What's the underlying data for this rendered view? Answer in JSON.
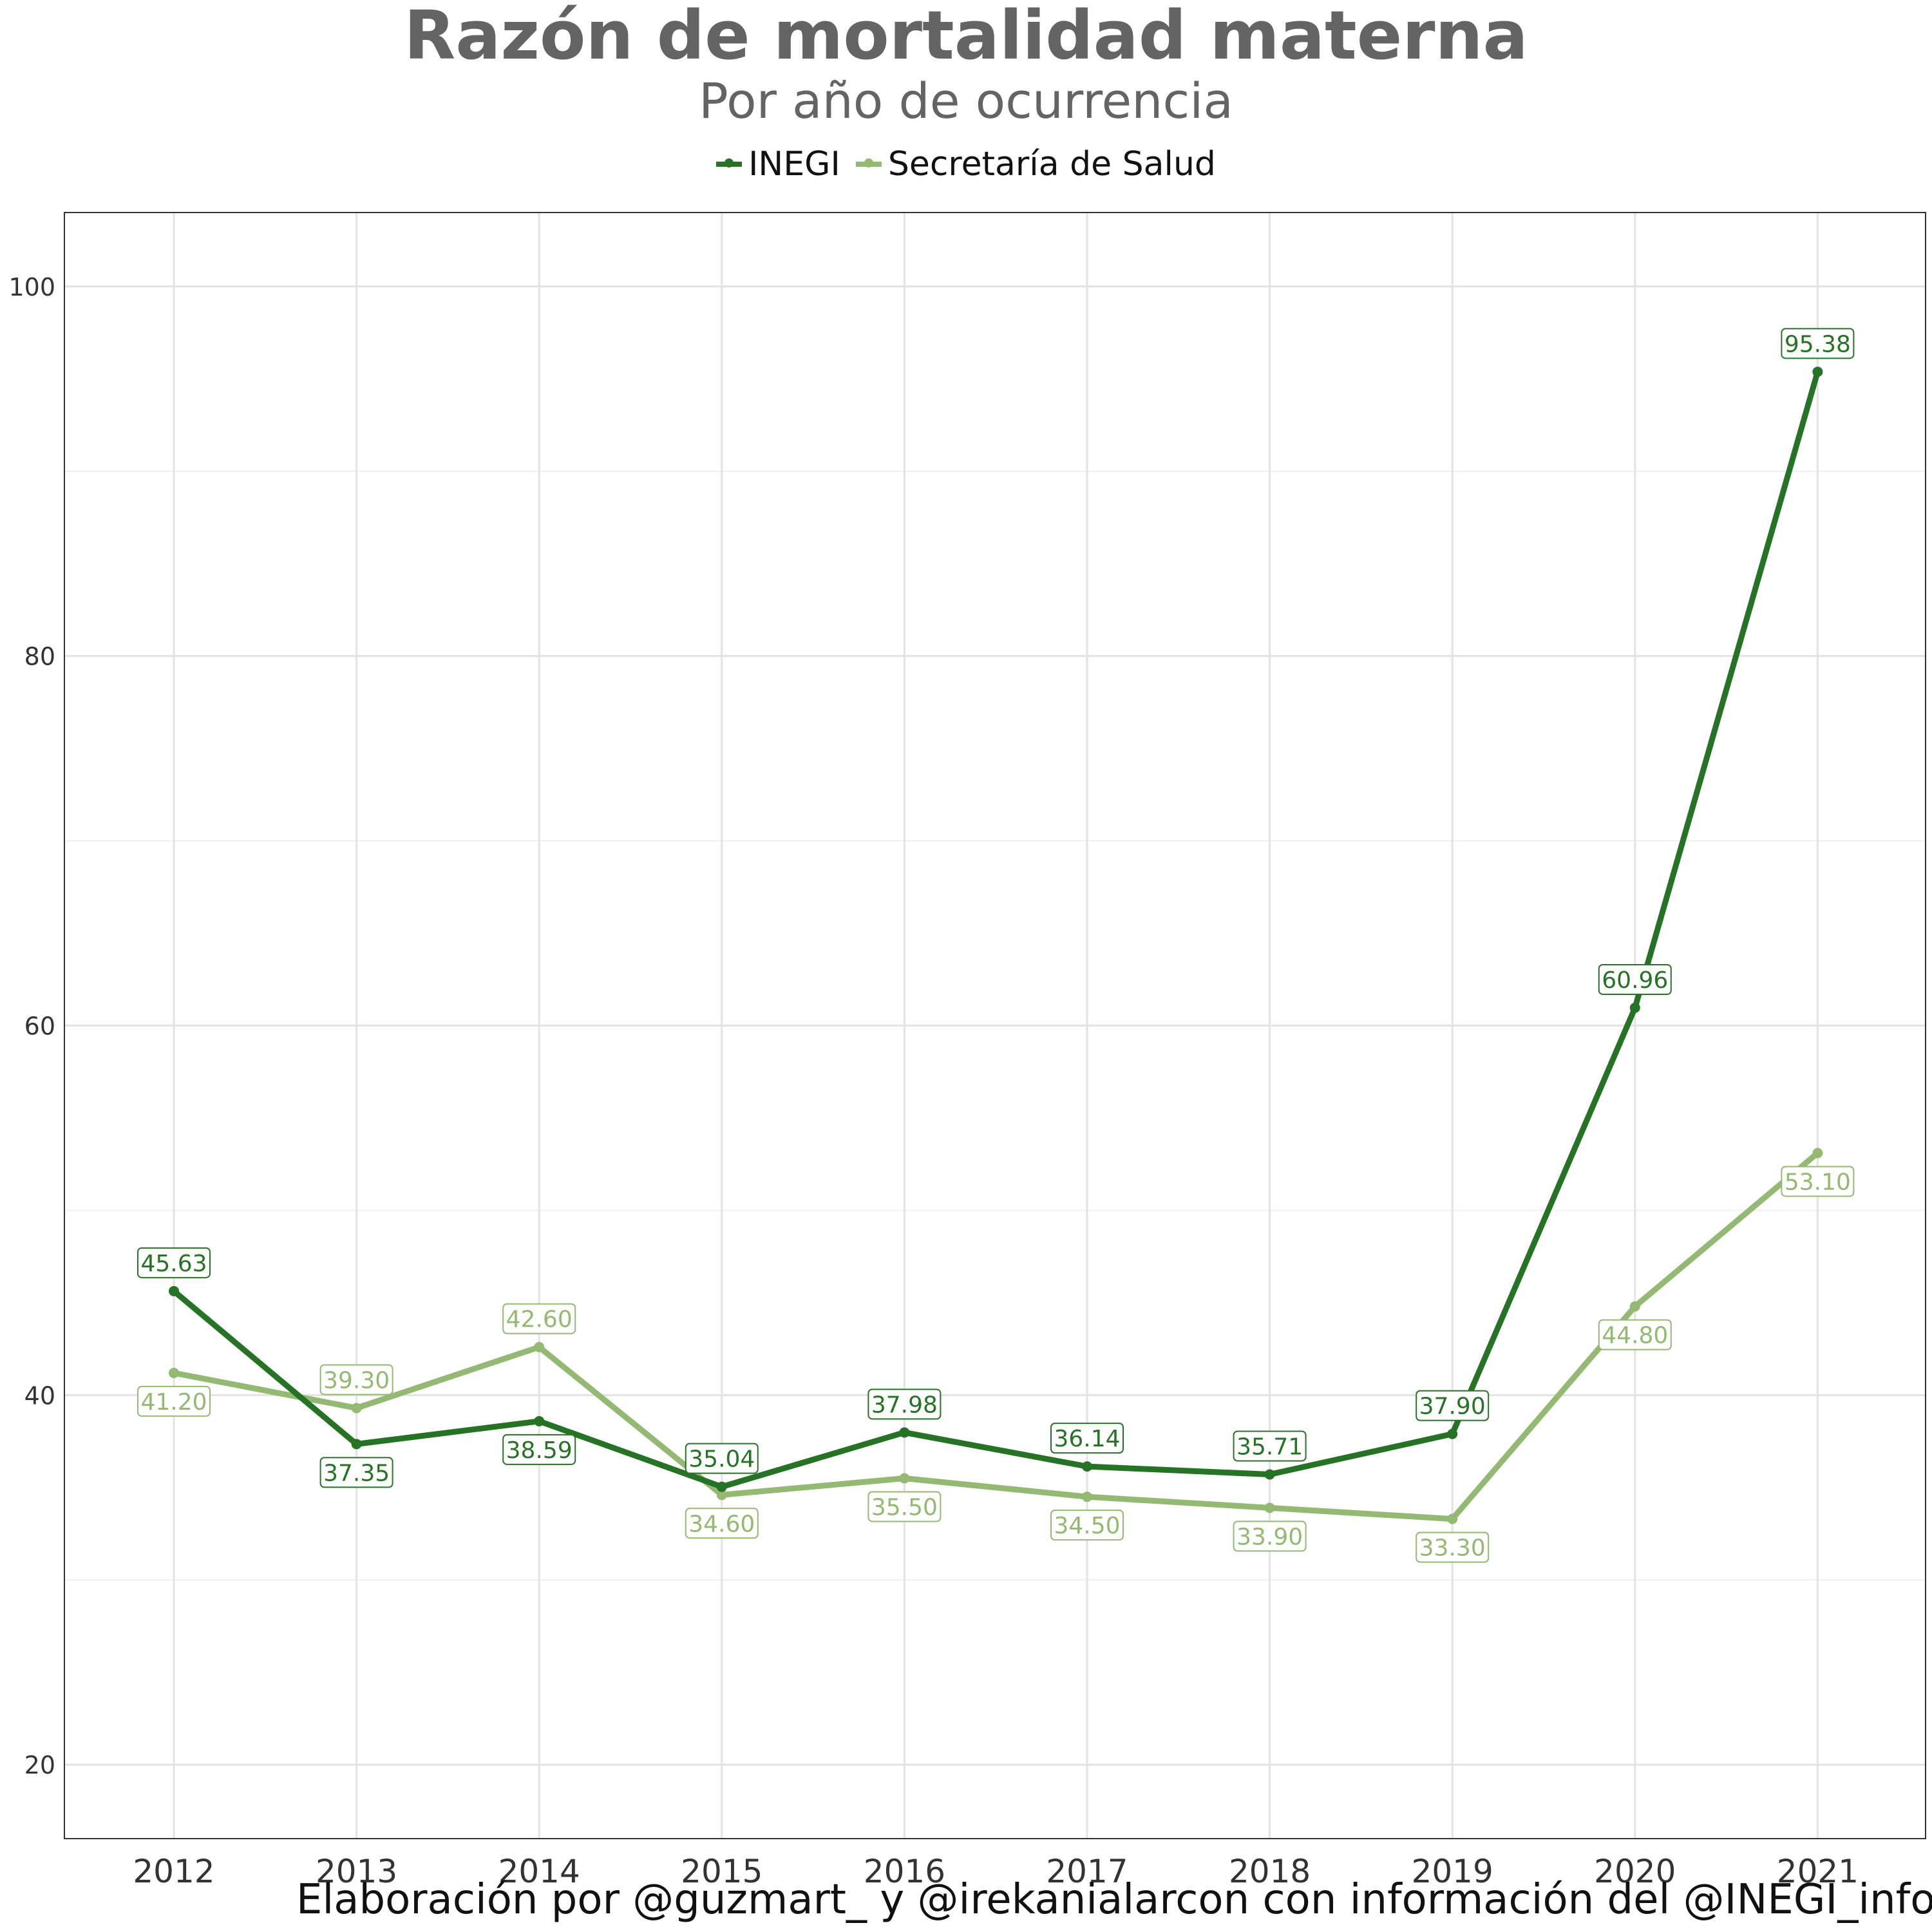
{
  "chart_data": {
    "type": "line",
    "title": "Razón de mortalidad materna",
    "subtitle": "Por año de ocurrencia",
    "xlabel": "",
    "ylabel": "",
    "x": [
      2012,
      2013,
      2014,
      2015,
      2016,
      2017,
      2018,
      2019,
      2020,
      2021
    ],
    "ylim": [
      16,
      104
    ],
    "yticks": [
      20,
      40,
      60,
      80,
      100
    ],
    "grid": true,
    "legend_position": "top",
    "series": [
      {
        "name": "INEGI",
        "color": "#267326",
        "values": [
          45.63,
          37.35,
          38.59,
          35.04,
          37.98,
          36.14,
          35.71,
          37.9,
          60.96,
          95.38
        ],
        "labels": [
          "45.63",
          "37.35",
          "38.59",
          "35.04",
          "37.98",
          "36.14",
          "35.71",
          "37.90",
          "60.96",
          "95.38"
        ]
      },
      {
        "name": "Secretaría de Salud",
        "color": "#93b972",
        "values": [
          41.2,
          39.3,
          42.6,
          34.6,
          35.5,
          34.5,
          33.9,
          33.3,
          44.8,
          53.1
        ],
        "labels": [
          "41.20",
          "39.30",
          "42.60",
          "34.60",
          "35.50",
          "34.50",
          "33.90",
          "33.30",
          "44.80",
          "53.10"
        ]
      }
    ]
  },
  "caption": "Elaboración por @guzmart_ y @irekanialarcon con información del @INEGI_informa"
}
